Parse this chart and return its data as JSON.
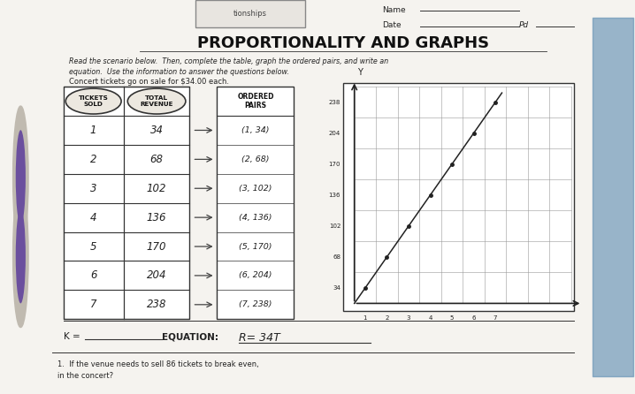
{
  "title": "PROPORTIONALITY AND GRAPHS",
  "name_label": "Name",
  "date_label": "Date",
  "pd_label": "Pd",
  "intro_text1": "Read the scenario below.  Then, complete the table, graph the ordered pairs, and write an",
  "intro_text2": "equation.  Use the information to answer the questions below.",
  "scenario": "Concert tickets go on sale for $34.00 each.",
  "table_header1": "TICKETS\nSOLD",
  "table_header2": "TOTAL\nREVENUE",
  "table_tickets": [
    1,
    2,
    3,
    4,
    5,
    6,
    7
  ],
  "table_revenue": [
    "34",
    "68",
    "102",
    "136",
    "170",
    "204",
    "238"
  ],
  "ordered_pairs_header": "ORDERED\nPAIRS",
  "ordered_pairs": [
    "(1, 34)",
    "(2, 68)",
    "(3, 102)",
    "(4, 136)",
    "(5, 170)",
    "(6, 204)",
    "(7, 238)"
  ],
  "graph_y_label": "Y",
  "graph_x_ticks": [
    1,
    2,
    3,
    4,
    5,
    6,
    7
  ],
  "graph_y_tick_labels": [
    "34",
    "68",
    "102",
    "136",
    "170",
    "204",
    "238"
  ],
  "k_label": "K = ",
  "equation_label": "EQUATION:",
  "equation_value": "R= 34T",
  "question1": "1.  If the venue needs to sell 86 tickets to break even,",
  "question2": "in the concert?",
  "tab_label": "tionships",
  "paper_color": "#f5f3ef",
  "white_color": "#ffffff",
  "line_color": "#222222",
  "grid_color": "#999999",
  "purple_color": "#6b4f9e",
  "purple_light": "#8b6fbe",
  "gray_bg": "#d8d4cc"
}
